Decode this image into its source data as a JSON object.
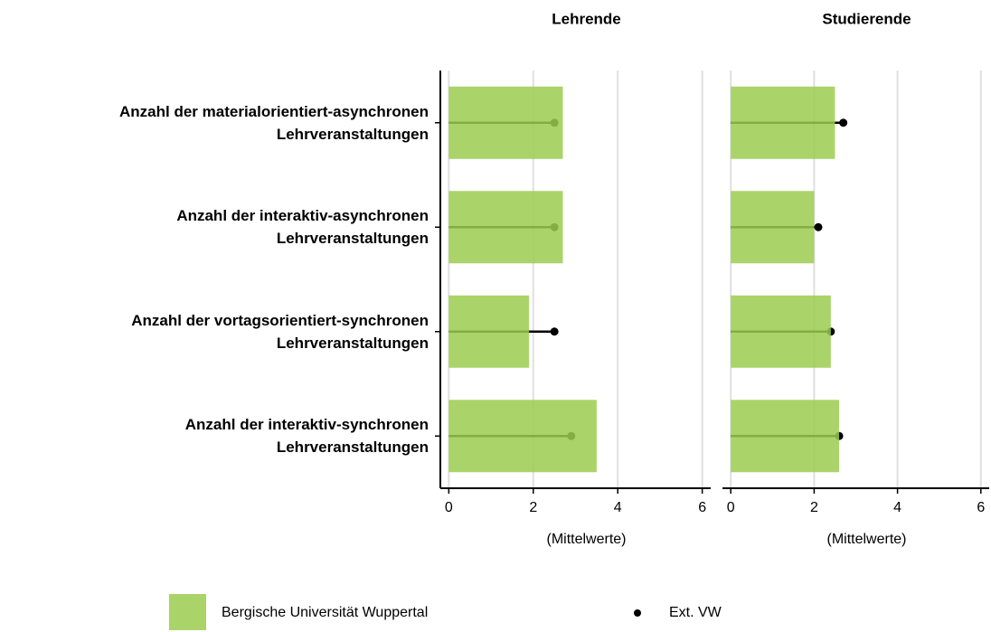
{
  "chart_data": {
    "type": "bar",
    "orientation": "horizontal",
    "categories": [
      "Anzahl der materialorientiert-asynchronen\nLehrveranstaltungen",
      "Anzahl der interaktiv-asynchronen\nLehrveranstaltungen",
      "Anzahl der vortagsorientiert-synchronen\nLehrveranstaltungen",
      "Anzahl der interaktiv-synchronen\nLehrveranstaltungen"
    ],
    "series": [
      {
        "name": "Bergische Universität Wuppertal",
        "color": "#9bcd4f",
        "style": "bar"
      },
      {
        "name": "Ext. VW",
        "color": "#000000",
        "style": "dot"
      }
    ],
    "legend": "bottom",
    "grid": true,
    "panels": [
      {
        "title": "Lehrende",
        "xlabel": "(Mittelwerte)",
        "xlim": [
          -0.2,
          6.2
        ],
        "xticks": [
          0,
          2,
          4,
          6
        ],
        "series_values": [
          [
            2.7,
            2.7,
            1.9,
            3.5
          ],
          [
            2.5,
            2.5,
            2.5,
            2.9
          ]
        ]
      },
      {
        "title": "Studierende",
        "xlabel": "(Mittelwerte)",
        "xlim": [
          -0.2,
          6.2
        ],
        "xticks": [
          0,
          2,
          4,
          6
        ],
        "series_values": [
          [
            2.5,
            2.0,
            2.4,
            2.6
          ],
          [
            2.7,
            2.1,
            2.4,
            2.6
          ]
        ]
      }
    ]
  }
}
